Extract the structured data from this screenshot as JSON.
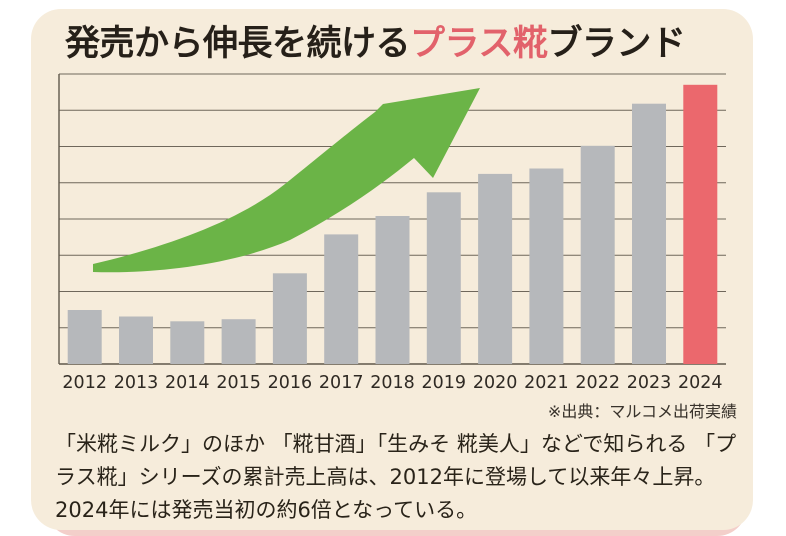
{
  "title": {
    "part1": "発売から伸長を続ける",
    "accent": "プラス糀",
    "part2": "ブランド",
    "accent_color": "#e2626b",
    "text_color": "#262019"
  },
  "chart_data": {
    "type": "bar",
    "title": "発売から伸長を続けるプラス糀ブランド",
    "categories": [
      "2012",
      "2013",
      "2014",
      "2015",
      "2016",
      "2017",
      "2018",
      "2019",
      "2020",
      "2021",
      "2022",
      "2023",
      "2024"
    ],
    "values": [
      1.0,
      0.88,
      0.79,
      0.83,
      1.68,
      2.4,
      2.74,
      3.18,
      3.52,
      3.62,
      4.04,
      4.82,
      5.17
    ],
    "unit": "relative shipment index (2012 = 1), no numeric y-axis shown",
    "ylim": [
      0,
      5.37
    ],
    "xlabel": "",
    "ylabel": "",
    "gridlines": 8,
    "grid_on": true,
    "legend": "none",
    "highlight_index": 12,
    "bar_color": "#b6b8bb",
    "highlight_color": "#eb686d",
    "annotation": "green upward growth arrow over bars"
  },
  "colors": {
    "card_background": "#f6ecdb",
    "card_shadow": "#f3cfca",
    "grid": "#6f675b",
    "axis": "#5f574b",
    "tick_label": "#2f2a24",
    "arrow_green": "#6bb447"
  },
  "source_note": "※出典：マルコメ出荷実績",
  "description": {
    "lines": [
      "「米糀ミルク」のほか 「糀甘酒」「生みそ 糀美人」などで知られる 「プ",
      "ラス糀」シリーズの累計売上高は、2012年に登場して以来年々上昇。",
      "2024年には発売当初の約6倍となっている。"
    ]
  }
}
